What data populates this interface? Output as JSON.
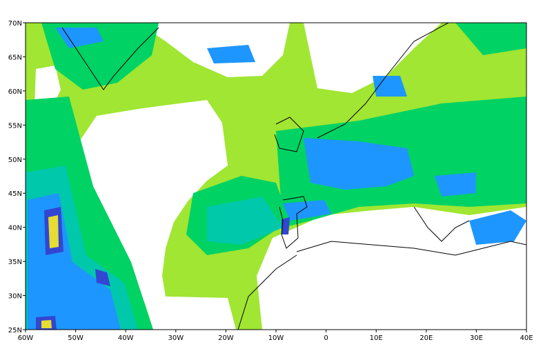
{
  "map": {
    "lon_labels": [
      "60W",
      "50W",
      "40W",
      "30W",
      "20W",
      "10W",
      "0",
      "10E",
      "20E",
      "30E",
      "40E"
    ],
    "lat_labels": [
      "25N",
      "30N",
      "35N",
      "40N",
      "45N",
      "50N",
      "55N",
      "60N",
      "65N",
      "70N"
    ]
  }
}
